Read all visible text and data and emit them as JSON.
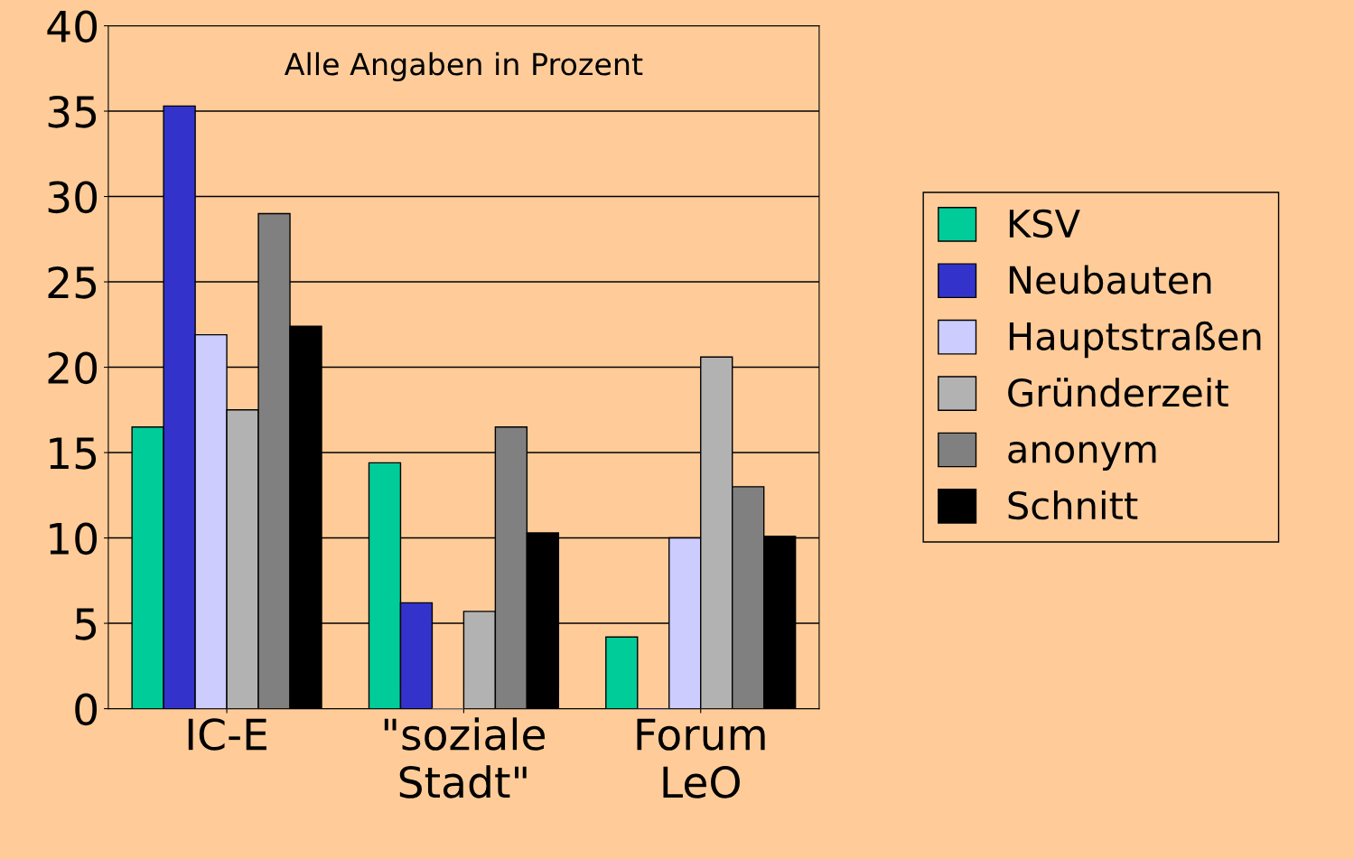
{
  "chart_data": {
    "type": "bar",
    "categories": [
      "IC-E",
      "\"soziale\nStadt\"",
      "Forum\nLeO"
    ],
    "series": [
      {
        "name": "KSV",
        "color": "#00cc99",
        "values": [
          16.5,
          14.4,
          4.2
        ]
      },
      {
        "name": "Neubauten",
        "color": "#3333cc",
        "values": [
          35.3,
          6.2,
          0
        ]
      },
      {
        "name": "Hauptstraßen",
        "color": "#ccccff",
        "values": [
          21.9,
          0,
          10.0
        ]
      },
      {
        "name": "Gründerzeit",
        "color": "#b2b2b2",
        "values": [
          17.5,
          5.7,
          20.6
        ]
      },
      {
        "name": "anonym",
        "color": "#808080",
        "values": [
          29.0,
          16.5,
          13.0
        ]
      },
      {
        "name": "Schnitt",
        "color": "#000000",
        "values": [
          22.4,
          10.3,
          10.1
        ]
      }
    ],
    "ylim": [
      0,
      40
    ],
    "yticks": [
      0,
      5,
      10,
      15,
      20,
      25,
      30,
      35,
      40
    ],
    "grid": "y",
    "legend": "right",
    "annotations": [
      "Alle Angaben in Prozent"
    ]
  }
}
